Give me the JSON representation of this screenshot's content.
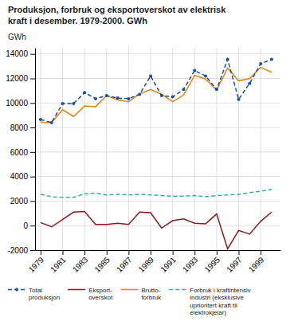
{
  "chart_data": {
    "type": "line",
    "title": "Produksjon, forbruk og eksportoverskot av elektrisk\nkraft i desember. 1979-2000. GWh",
    "y_label": "GWh",
    "x": [
      1979,
      1980,
      1981,
      1982,
      1983,
      1984,
      1985,
      1986,
      1987,
      1988,
      1989,
      1990,
      1991,
      1992,
      1993,
      1994,
      1995,
      1996,
      1997,
      1998,
      1999,
      2000
    ],
    "series": [
      {
        "name": "Total\nproduksjon",
        "color": "#1a4fa0",
        "line_style": "dashed",
        "marker": "circle",
        "values": [
          8650,
          8400,
          9950,
          9950,
          10850,
          10350,
          10600,
          10400,
          10350,
          10700,
          12200,
          10600,
          10500,
          11100,
          12650,
          12200,
          11100,
          13550,
          10300,
          11600,
          13200,
          13550
        ]
      },
      {
        "name": "Eksport-\noverskot",
        "color": "#8b1a1a",
        "line_style": "solid",
        "marker": "none",
        "values": [
          250,
          -100,
          500,
          1100,
          1150,
          100,
          100,
          200,
          100,
          1100,
          1050,
          -200,
          400,
          550,
          200,
          150,
          950,
          -1900,
          -400,
          -700,
          350,
          1100
        ]
      },
      {
        "name": "Brutto-\nforbruk",
        "color": "#e8820c",
        "line_style": "solid",
        "marker": "none",
        "values": [
          8450,
          8400,
          9450,
          8900,
          9750,
          9700,
          10600,
          10250,
          10100,
          10750,
          11100,
          10700,
          10100,
          10650,
          12250,
          11950,
          11050,
          12850,
          11800,
          12000,
          12900,
          12500
        ]
      },
      {
        "name": "Forbruk i kraftintensiv\nindustri (eksklusive\nuprioritert kraft til\nelektrokjelar)",
        "color": "#2ab5a0",
        "line_style": "dashed",
        "marker": "none",
        "values": [
          2550,
          2350,
          2300,
          2300,
          2600,
          2650,
          2500,
          2550,
          2500,
          2550,
          2500,
          2450,
          2400,
          2400,
          2450,
          2350,
          2450,
          2500,
          2550,
          2700,
          2800,
          2950
        ]
      }
    ],
    "xlim": [
      1978.5,
      2000.8
    ],
    "xticks": [
      1979,
      1981,
      1983,
      1985,
      1987,
      1989,
      1991,
      1993,
      1995,
      1997,
      1999
    ],
    "ylim": [
      -2000,
      14500
    ],
    "yticks": [
      -2000,
      0,
      2000,
      4000,
      6000,
      8000,
      10000,
      12000,
      14000
    ],
    "grid": true,
    "legend": "bottom"
  }
}
